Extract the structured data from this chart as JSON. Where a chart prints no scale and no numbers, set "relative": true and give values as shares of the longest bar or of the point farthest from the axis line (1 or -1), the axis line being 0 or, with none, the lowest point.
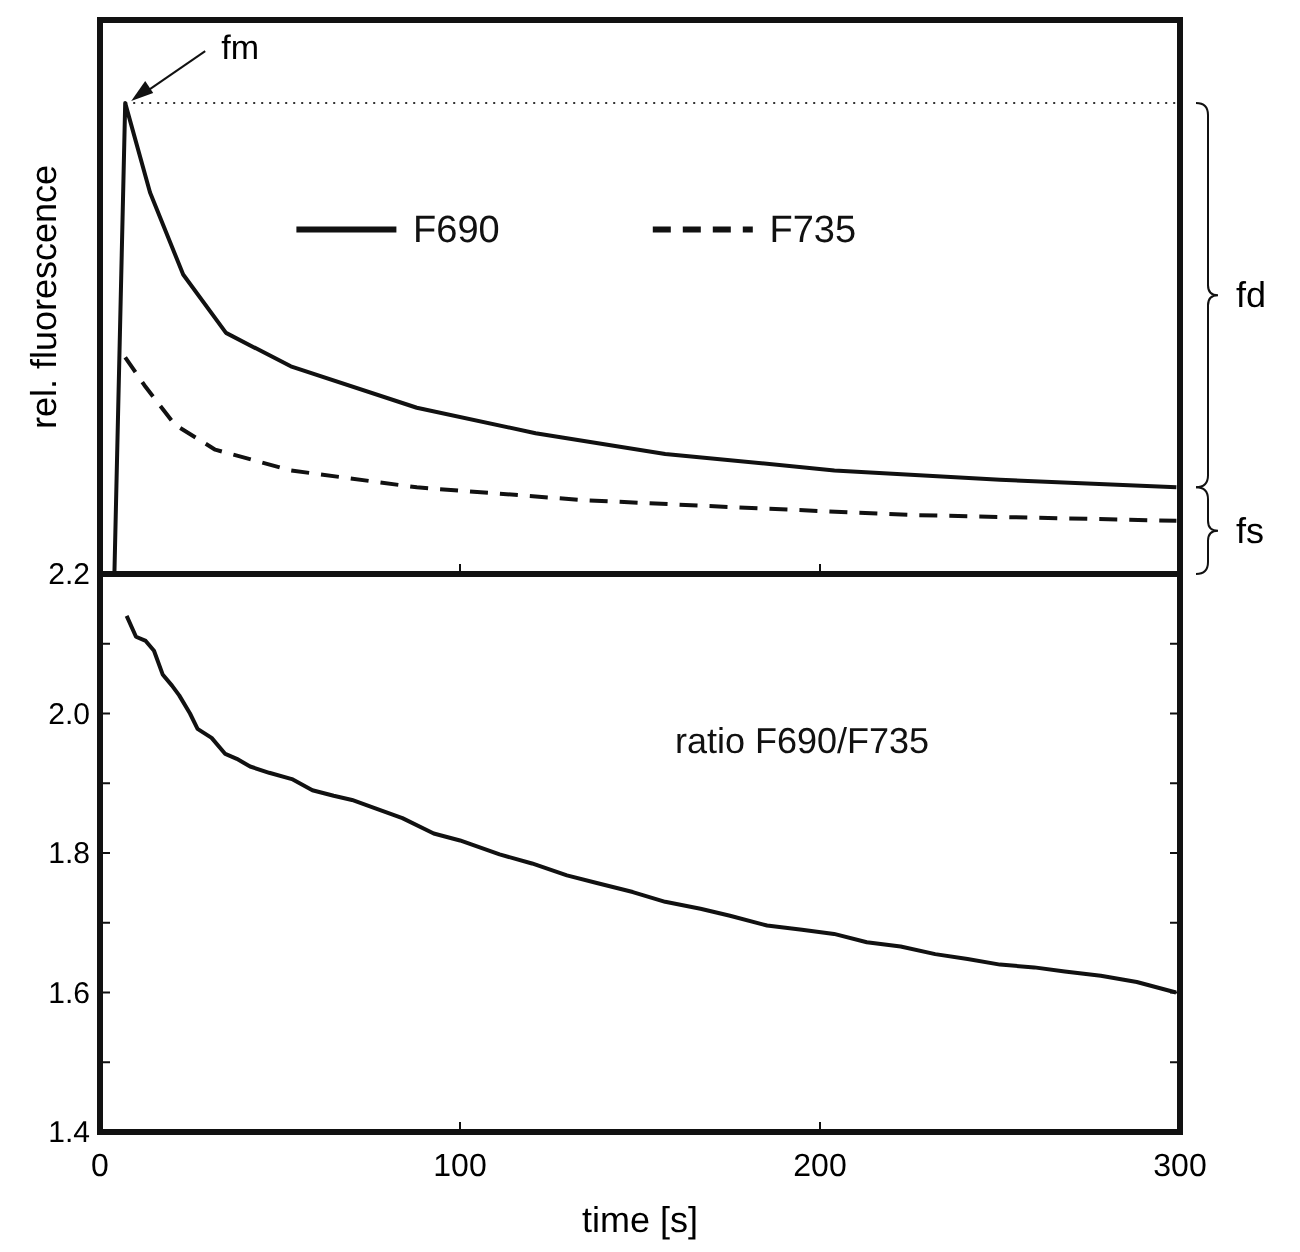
{
  "chart_data": [
    {
      "type": "line",
      "ylabel": "rel. fluorescence",
      "relative": true,
      "xlim": [
        0,
        300
      ],
      "xticks": [
        0,
        100,
        200,
        300
      ],
      "tick_labels": false,
      "legend": "top",
      "marker": "none",
      "series": [
        {
          "name": "F690",
          "color": "#111111",
          "line_style": "solid",
          "x": [
            4,
            7,
            13.9,
            23.1,
            35,
            53,
            88,
            121,
            157,
            204,
            250,
            299
          ],
          "values": [
            0,
            1,
            0.81,
            0.636,
            0.512,
            0.441,
            0.353,
            0.299,
            0.255,
            0.22,
            0.2,
            0.184
          ]
        },
        {
          "name": "F735",
          "color": "#111111",
          "line_style": "dashed",
          "x": [
            7,
            12.7,
            20.8,
            32,
            53,
            88,
            134,
            181,
            227,
            299
          ],
          "values": [
            0.46,
            0.397,
            0.317,
            0.264,
            0.22,
            0.184,
            0.157,
            0.14,
            0.125,
            0.113
          ]
        }
      ],
      "ref_lines": [
        {
          "axis": "y",
          "value": 1,
          "line_style": "dotted"
        }
      ],
      "annotations": [
        {
          "text": "fm",
          "x": 7,
          "y": 1
        },
        "fd",
        "fs"
      ]
    },
    {
      "type": "line",
      "xlabel": "time [s]",
      "xlim": [
        0,
        300
      ],
      "xticks": [
        0,
        100,
        200,
        300
      ],
      "ylim": [
        1.4,
        2.2
      ],
      "yticks": [
        1.4,
        {
          "value": 1.5,
          "label": null
        },
        1.6,
        {
          "value": 1.7,
          "label": null
        },
        1.8,
        {
          "value": 1.9,
          "label": null
        },
        {
          "value": 2,
          "label": "2.0"
        },
        {
          "value": 2.1,
          "label": null
        },
        2.2
      ],
      "legend": false,
      "marker": "none",
      "series": [
        {
          "name": "ratio F690/F735",
          "color": "#111111",
          "line_style": "solid",
          "x": [
            7.4,
            10,
            12.7,
            15,
            17.4,
            20,
            22,
            25,
            27.1,
            31,
            34.8,
            38,
            41.7,
            47,
            53.3,
            59,
            64.9,
            70,
            76.5,
            84,
            92.7,
            100,
            111,
            120,
            129.7,
            138,
            148,
            157,
            166.8,
            175,
            185.3,
            195,
            203.9,
            213,
            222.4,
            232,
            241,
            250,
            259.5,
            268,
            278,
            288,
            298.9
          ],
          "values": [
            2.14,
            2.11,
            2.104,
            2.09,
            2.056,
            2.04,
            2.026,
            2.0,
            1.978,
            1.965,
            1.942,
            1.935,
            1.924,
            1.915,
            1.906,
            1.89,
            1.882,
            1.876,
            1.864,
            1.85,
            1.828,
            1.818,
            1.798,
            1.785,
            1.768,
            1.757,
            1.744,
            1.73,
            1.72,
            1.71,
            1.696,
            1.69,
            1.684,
            1.672,
            1.666,
            1.655,
            1.648,
            1.64,
            1.636,
            1.63,
            1.624,
            1.615,
            1.6
          ]
        }
      ]
    }
  ]
}
